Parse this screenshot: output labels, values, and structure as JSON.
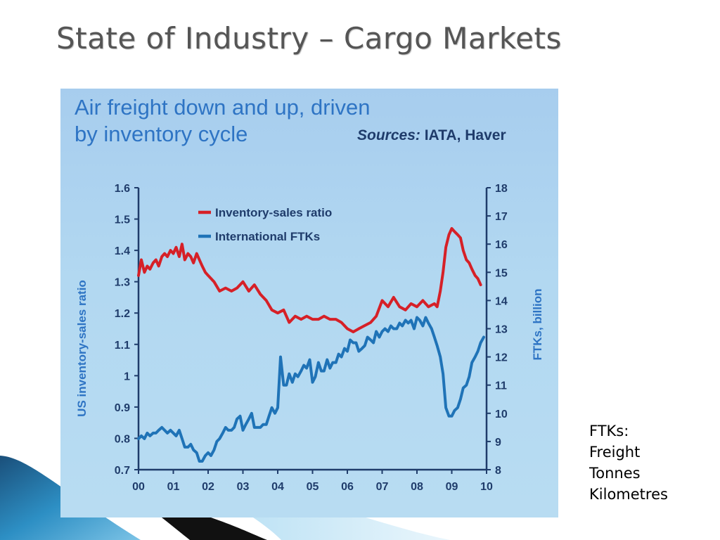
{
  "slide": {
    "title": "State of Industry – Cargo Markets",
    "note": [
      "FTKs:",
      "Freight",
      "Tonnes",
      "Kilometres"
    ]
  },
  "colors": {
    "panel_background": "#b2d8f1",
    "axis": "#1f3c6b",
    "inventory_series": "#d62027",
    "ftk_series": "#1f73b7",
    "headline": "#2e74c4"
  },
  "chart_data": {
    "type": "line",
    "headline": [
      "Air freight down and up, driven",
      "by inventory cycle"
    ],
    "sources_label": "Sources:",
    "sources_text": "IATA, Haver",
    "ylabel_left": "US inventory-sales ratio",
    "ylabel_right": "FTKs, billion",
    "ylim_left": [
      0.7,
      1.6
    ],
    "ylim_right": [
      8,
      18
    ],
    "yticks_left": [
      "1.6",
      "1.5",
      "1.4",
      "1.3",
      "1.2",
      "1.1",
      "1",
      "0.9",
      "0.8",
      "0.7"
    ],
    "yticks_right": [
      "18",
      "17",
      "16",
      "15",
      "14",
      "13",
      "12",
      "11",
      "10",
      "9",
      "8"
    ],
    "xlim": [
      0,
      10
    ],
    "xticks": [
      "00",
      "01",
      "02",
      "03",
      "04",
      "05",
      "06",
      "07",
      "08",
      "09",
      "10"
    ],
    "legend_position": "top-left",
    "grid": false,
    "series": [
      {
        "name": "Inventory-sales ratio",
        "axis": "left",
        "color": "#d62027",
        "x": [
          0.0,
          0.08,
          0.17,
          0.25,
          0.33,
          0.42,
          0.5,
          0.58,
          0.67,
          0.75,
          0.83,
          0.92,
          1.0,
          1.08,
          1.17,
          1.25,
          1.33,
          1.42,
          1.5,
          1.58,
          1.67,
          1.75,
          1.83,
          1.92,
          2.0,
          2.17,
          2.33,
          2.5,
          2.67,
          2.83,
          3.0,
          3.17,
          3.33,
          3.5,
          3.67,
          3.83,
          4.0,
          4.17,
          4.33,
          4.5,
          4.67,
          4.83,
          5.0,
          5.17,
          5.33,
          5.5,
          5.67,
          5.83,
          6.0,
          6.17,
          6.33,
          6.5,
          6.67,
          6.83,
          7.0,
          7.17,
          7.33,
          7.5,
          7.67,
          7.83,
          8.0,
          8.17,
          8.33,
          8.5,
          8.58,
          8.67,
          8.75,
          8.83,
          8.92,
          9.0,
          9.08,
          9.17,
          9.25,
          9.33,
          9.42,
          9.5,
          9.58,
          9.67,
          9.75,
          9.83
        ],
        "values": [
          1.32,
          1.37,
          1.33,
          1.35,
          1.34,
          1.36,
          1.37,
          1.35,
          1.38,
          1.39,
          1.38,
          1.4,
          1.39,
          1.41,
          1.38,
          1.42,
          1.37,
          1.39,
          1.38,
          1.36,
          1.39,
          1.37,
          1.35,
          1.33,
          1.32,
          1.3,
          1.27,
          1.28,
          1.27,
          1.28,
          1.3,
          1.27,
          1.29,
          1.26,
          1.24,
          1.21,
          1.2,
          1.21,
          1.17,
          1.19,
          1.18,
          1.19,
          1.18,
          1.18,
          1.19,
          1.18,
          1.18,
          1.17,
          1.15,
          1.14,
          1.15,
          1.16,
          1.17,
          1.19,
          1.24,
          1.22,
          1.25,
          1.22,
          1.21,
          1.23,
          1.22,
          1.24,
          1.22,
          1.23,
          1.22,
          1.27,
          1.33,
          1.41,
          1.45,
          1.47,
          1.46,
          1.45,
          1.44,
          1.4,
          1.37,
          1.36,
          1.34,
          1.32,
          1.31,
          1.29
        ]
      },
      {
        "name": "International FTKs",
        "axis": "right",
        "color": "#1f73b7",
        "x": [
          0.0,
          0.08,
          0.17,
          0.25,
          0.33,
          0.42,
          0.5,
          0.58,
          0.67,
          0.75,
          0.83,
          0.92,
          1.0,
          1.08,
          1.17,
          1.25,
          1.33,
          1.42,
          1.5,
          1.58,
          1.67,
          1.75,
          1.83,
          1.92,
          2.0,
          2.08,
          2.17,
          2.25,
          2.33,
          2.42,
          2.5,
          2.58,
          2.67,
          2.75,
          2.83,
          2.92,
          3.0,
          3.08,
          3.17,
          3.25,
          3.33,
          3.42,
          3.5,
          3.58,
          3.67,
          3.75,
          3.83,
          3.92,
          4.0,
          4.08,
          4.17,
          4.25,
          4.33,
          4.42,
          4.5,
          4.58,
          4.67,
          4.75,
          4.83,
          4.92,
          5.0,
          5.08,
          5.17,
          5.25,
          5.33,
          5.42,
          5.5,
          5.58,
          5.67,
          5.75,
          5.83,
          5.92,
          6.0,
          6.08,
          6.17,
          6.25,
          6.33,
          6.42,
          6.5,
          6.58,
          6.67,
          6.75,
          6.83,
          6.92,
          7.0,
          7.08,
          7.17,
          7.25,
          7.33,
          7.42,
          7.5,
          7.58,
          7.67,
          7.75,
          7.83,
          7.92,
          8.0,
          8.08,
          8.17,
          8.25,
          8.33,
          8.42,
          8.5,
          8.58,
          8.67,
          8.75,
          8.83,
          8.92,
          9.0,
          9.08,
          9.17,
          9.25,
          9.33,
          9.42,
          9.5,
          9.58,
          9.67,
          9.75,
          9.83,
          9.92
        ],
        "values": [
          9.1,
          9.2,
          9.1,
          9.3,
          9.2,
          9.3,
          9.3,
          9.4,
          9.5,
          9.4,
          9.3,
          9.4,
          9.3,
          9.2,
          9.4,
          9.1,
          8.8,
          8.8,
          8.9,
          8.7,
          8.6,
          8.3,
          8.3,
          8.5,
          8.6,
          8.5,
          8.7,
          9.0,
          9.1,
          9.3,
          9.5,
          9.4,
          9.4,
          9.5,
          9.8,
          9.9,
          9.4,
          9.6,
          9.8,
          10.0,
          9.5,
          9.5,
          9.5,
          9.6,
          9.6,
          9.9,
          10.2,
          10.0,
          10.2,
          12.0,
          11.0,
          11.0,
          11.4,
          11.1,
          11.4,
          11.3,
          11.5,
          11.7,
          11.6,
          11.9,
          11.1,
          11.3,
          11.8,
          11.5,
          11.5,
          11.9,
          11.6,
          11.8,
          11.8,
          12.1,
          12.0,
          12.3,
          12.2,
          12.6,
          12.5,
          12.5,
          12.2,
          12.3,
          12.4,
          12.7,
          12.6,
          12.5,
          12.9,
          12.7,
          12.9,
          13.0,
          12.9,
          13.1,
          13.0,
          13.0,
          13.2,
          13.1,
          13.3,
          13.2,
          13.3,
          13.0,
          13.4,
          13.3,
          13.1,
          13.4,
          13.2,
          13.0,
          12.7,
          12.4,
          12.0,
          11.4,
          10.2,
          9.9,
          9.9,
          10.1,
          10.2,
          10.5,
          10.9,
          11.0,
          11.3,
          11.8,
          12.0,
          12.2,
          12.5,
          12.7
        ]
      }
    ]
  }
}
